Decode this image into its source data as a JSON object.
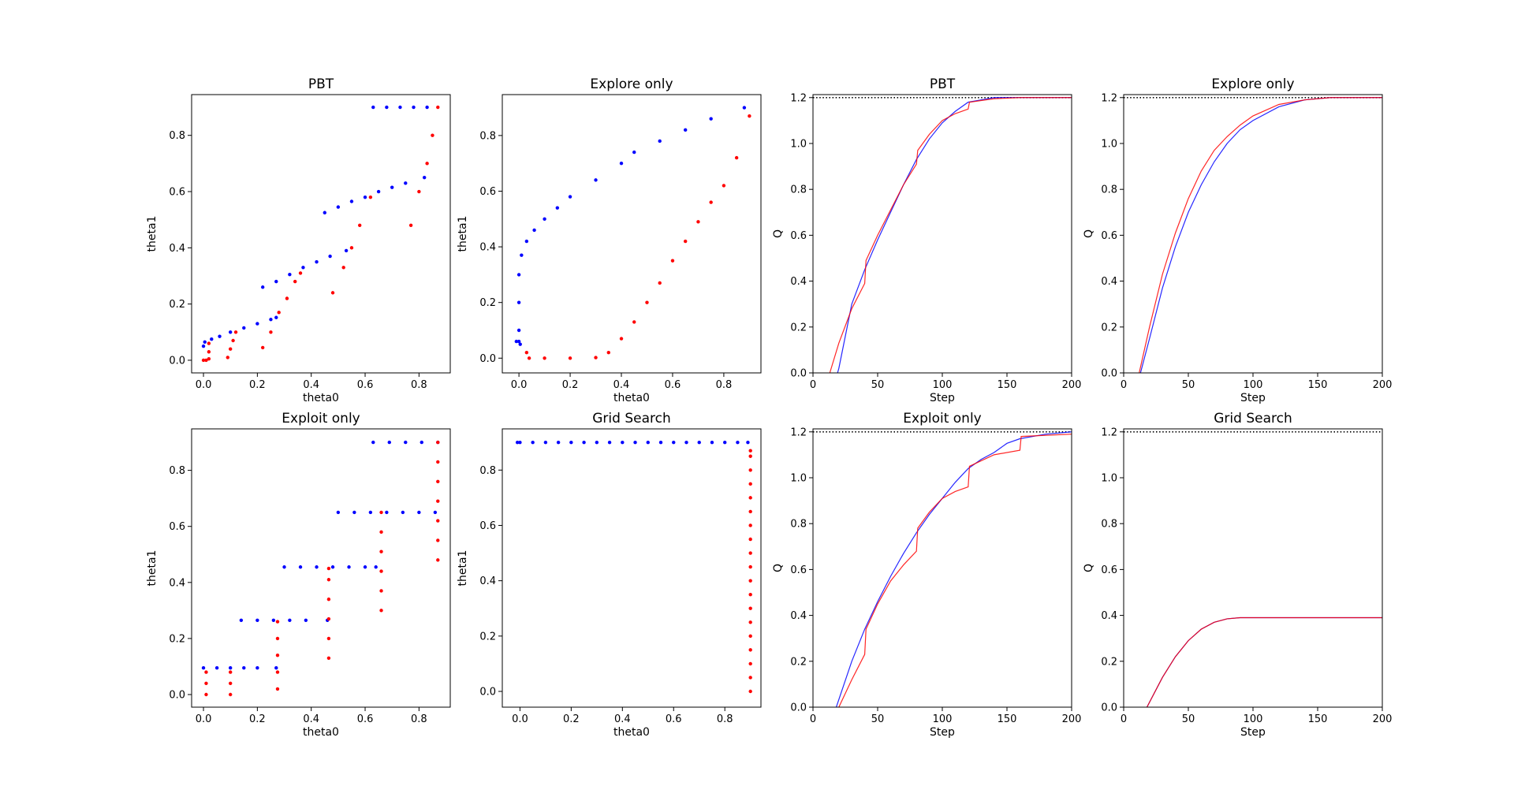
{
  "chart_data": [
    {
      "type": "scatter",
      "title": "PBT",
      "xlabel": "theta0",
      "ylabel": "theta1",
      "xlim": [
        -0.044,
        0.916
      ],
      "ylim": [
        -0.045,
        0.945
      ],
      "xticks": [
        {
          "value": 0,
          "label": "0.0"
        },
        0.2,
        0.4,
        0.6,
        0.8
      ],
      "yticks": [
        {
          "value": 0,
          "label": "0.0"
        },
        0.2,
        0.4,
        0.6,
        0.8
      ],
      "series": [
        {
          "color": "#0000ff",
          "x": [
            0,
            0.005,
            0.03,
            0.06,
            0.1,
            0.15,
            0.2,
            0.25,
            0.27,
            0.22,
            0.27,
            0.32,
            0.37,
            0.42,
            0.47,
            0.53,
            0.45,
            0.5,
            0.55,
            0.6,
            0.65,
            0.7,
            0.75,
            0.82,
            0.63,
            0.68,
            0.73,
            0.78,
            0.83
          ],
          "values": [
            0.05,
            0.065,
            0.075,
            0.085,
            0.1,
            0.115,
            0.13,
            0.145,
            0.152,
            0.26,
            0.28,
            0.305,
            0.33,
            0.35,
            0.37,
            0.39,
            0.525,
            0.545,
            0.565,
            0.58,
            0.6,
            0.615,
            0.63,
            0.65,
            0.9,
            0.9,
            0.9,
            0.9,
            0.9
          ]
        },
        {
          "color": "#ff0000",
          "x": [
            0,
            0.01,
            0.02,
            0.02,
            0.02,
            0.09,
            0.1,
            0.11,
            0.12,
            0.22,
            0.25,
            0.28,
            0.31,
            0.34,
            0.36,
            0.48,
            0.52,
            0.55,
            0.58,
            0.62,
            0.77,
            0.8,
            0.83,
            0.85,
            0.87
          ],
          "values": [
            0,
            0,
            0.005,
            0.03,
            0.06,
            0.01,
            0.04,
            0.07,
            0.1,
            0.045,
            0.1,
            0.17,
            0.22,
            0.28,
            0.31,
            0.24,
            0.33,
            0.4,
            0.48,
            0.58,
            0.48,
            0.6,
            0.7,
            0.8,
            0.9
          ]
        }
      ]
    },
    {
      "type": "scatter",
      "title": "Explore only",
      "xlabel": "theta0",
      "ylabel": "theta1",
      "xlim": [
        -0.065,
        0.945
      ],
      "ylim": [
        -0.053,
        0.947
      ],
      "xticks": [
        {
          "value": 0,
          "label": "0.0"
        },
        0.2,
        0.4,
        0.6,
        0.8
      ],
      "yticks": [
        {
          "value": 0,
          "label": "0.0"
        },
        0.2,
        0.4,
        0.6,
        0.8
      ],
      "series": [
        {
          "color": "#0000ff",
          "x": [
            -0.01,
            0,
            0.005,
            0,
            0,
            0,
            0.01,
            0.03,
            0.06,
            0.1,
            0.15,
            0.2,
            0.3,
            0.4,
            0.45,
            0.55,
            0.65,
            0.75,
            0.88
          ],
          "values": [
            0.06,
            0.06,
            0.05,
            0.1,
            0.2,
            0.3,
            0.37,
            0.42,
            0.46,
            0.5,
            0.54,
            0.58,
            0.64,
            0.7,
            0.74,
            0.78,
            0.82,
            0.86,
            0.9
          ]
        },
        {
          "color": "#ff0000",
          "x": [
            0.03,
            0.04,
            0.1,
            0.2,
            0.3,
            0.35,
            0.4,
            0.45,
            0.5,
            0.55,
            0.6,
            0.65,
            0.7,
            0.75,
            0.8,
            0.85,
            0.9
          ],
          "values": [
            0.02,
            0,
            0,
            0,
            0.002,
            0.02,
            0.07,
            0.13,
            0.2,
            0.27,
            0.35,
            0.42,
            0.49,
            0.56,
            0.62,
            0.72,
            0.87
          ]
        }
      ]
    },
    {
      "type": "line",
      "title": "PBT",
      "xlabel": "Step",
      "ylabel": "Q",
      "xlim": [
        0,
        200
      ],
      "ylim": [
        0,
        1.213
      ],
      "hline": 1.2,
      "xticks": [
        0,
        50,
        100,
        150,
        200
      ],
      "yticks": [
        {
          "value": 0,
          "label": "0.0"
        },
        0.2,
        0.4,
        0.6,
        0.8,
        {
          "value": 1,
          "label": "1.0"
        },
        1.2
      ],
      "series": [
        {
          "color": "#0000ff",
          "x": [
            19,
            20,
            30,
            40,
            50,
            60,
            70,
            80,
            90,
            100,
            110,
            120,
            130,
            140,
            200
          ],
          "values": [
            0,
            0.02,
            0.3,
            0.45,
            0.58,
            0.7,
            0.82,
            0.93,
            1.02,
            1.09,
            1.14,
            1.18,
            1.19,
            1.2,
            1.2
          ]
        },
        {
          "color": "#ff0000",
          "x": [
            13,
            20,
            30,
            40,
            41,
            50,
            60,
            70,
            80,
            81,
            90,
            100,
            110,
            120,
            121,
            140,
            160,
            200
          ],
          "values": [
            0,
            0.13,
            0.28,
            0.39,
            0.49,
            0.6,
            0.71,
            0.82,
            0.91,
            0.97,
            1.04,
            1.1,
            1.13,
            1.15,
            1.18,
            1.195,
            1.2,
            1.2
          ]
        }
      ]
    },
    {
      "type": "line",
      "title": "Explore only",
      "xlabel": "Step",
      "ylabel": "Q",
      "xlim": [
        0,
        200
      ],
      "ylim": [
        0,
        1.213
      ],
      "hline": 1.2,
      "xticks": [
        0,
        50,
        100,
        150,
        200
      ],
      "yticks": [
        {
          "value": 0,
          "label": "0.0"
        },
        0.2,
        0.4,
        0.6,
        0.8,
        {
          "value": 1,
          "label": "1.0"
        },
        1.2
      ],
      "series": [
        {
          "color": "#0000ff",
          "x": [
            13,
            20,
            30,
            40,
            50,
            60,
            70,
            80,
            90,
            100,
            120,
            140,
            160,
            200
          ],
          "values": [
            0,
            0.15,
            0.37,
            0.55,
            0.7,
            0.82,
            0.92,
            1,
            1.06,
            1.1,
            1.16,
            1.19,
            1.2,
            1.2
          ]
        },
        {
          "color": "#ff0000",
          "x": [
            12,
            20,
            30,
            40,
            50,
            60,
            70,
            80,
            90,
            100,
            120,
            140,
            160,
            200
          ],
          "values": [
            0,
            0.2,
            0.43,
            0.61,
            0.76,
            0.88,
            0.97,
            1.03,
            1.08,
            1.12,
            1.17,
            1.19,
            1.2,
            1.2
          ]
        }
      ]
    },
    {
      "type": "scatter",
      "title": "Exploit only",
      "xlabel": "theta0",
      "ylabel": "theta1",
      "xlim": [
        -0.044,
        0.916
      ],
      "ylim": [
        -0.045,
        0.948
      ],
      "xticks": [
        {
          "value": 0,
          "label": "0.0"
        },
        0.2,
        0.4,
        0.6,
        0.8
      ],
      "yticks": [
        {
          "value": 0,
          "label": "0.0"
        },
        0.2,
        0.4,
        0.6,
        0.8
      ],
      "series": [
        {
          "color": "#0000ff",
          "x": [
            0,
            0.05,
            0.1,
            0.15,
            0.2,
            0.27,
            0.14,
            0.2,
            0.26,
            0.32,
            0.38,
            0.46,
            0.3,
            0.36,
            0.42,
            0.48,
            0.54,
            0.6,
            0.64,
            0.5,
            0.56,
            0.62,
            0.68,
            0.74,
            0.8,
            0.86,
            0.63,
            0.69,
            0.75,
            0.81,
            0.87
          ],
          "values": [
            0.095,
            0.095,
            0.095,
            0.095,
            0.095,
            0.095,
            0.265,
            0.265,
            0.265,
            0.265,
            0.265,
            0.265,
            0.455,
            0.455,
            0.455,
            0.455,
            0.455,
            0.455,
            0.455,
            0.65,
            0.65,
            0.65,
            0.65,
            0.65,
            0.65,
            0.65,
            0.9,
            0.9,
            0.9,
            0.9,
            0.9
          ]
        },
        {
          "color": "#ff0000",
          "x": [
            0.01,
            0.01,
            0.01,
            0.1,
            0.1,
            0.1,
            0.275,
            0.275,
            0.275,
            0.275,
            0.275,
            0.465,
            0.465,
            0.465,
            0.465,
            0.465,
            0.465,
            0.66,
            0.66,
            0.66,
            0.66,
            0.66,
            0.66,
            0.87,
            0.87,
            0.87,
            0.87,
            0.87,
            0.87,
            0.87
          ],
          "values": [
            0,
            0.04,
            0.08,
            0,
            0.04,
            0.08,
            0.02,
            0.08,
            0.14,
            0.2,
            0.26,
            0.13,
            0.2,
            0.27,
            0.34,
            0.41,
            0.45,
            0.3,
            0.37,
            0.44,
            0.51,
            0.58,
            0.65,
            0.48,
            0.55,
            0.62,
            0.69,
            0.76,
            0.83,
            0.9
          ]
        }
      ]
    },
    {
      "type": "scatter",
      "title": "Grid Search",
      "xlabel": "theta0",
      "ylabel": "theta1",
      "xlim": [
        -0.069,
        0.941
      ],
      "ylim": [
        -0.057,
        0.949
      ],
      "xticks": [
        {
          "value": 0,
          "label": "0.0"
        },
        0.2,
        0.4,
        0.6,
        0.8
      ],
      "yticks": [
        {
          "value": 0,
          "label": "0.0"
        },
        0.2,
        0.4,
        0.6,
        0.8
      ],
      "series": [
        {
          "color": "#0000ff",
          "x": [
            -0.01,
            0,
            0.05,
            0.1,
            0.15,
            0.2,
            0.25,
            0.3,
            0.35,
            0.4,
            0.45,
            0.5,
            0.55,
            0.6,
            0.65,
            0.7,
            0.75,
            0.8,
            0.85,
            0.89
          ],
          "values": [
            0.9,
            0.9,
            0.9,
            0.9,
            0.9,
            0.9,
            0.9,
            0.9,
            0.9,
            0.9,
            0.9,
            0.9,
            0.9,
            0.9,
            0.9,
            0.9,
            0.9,
            0.9,
            0.9,
            0.9
          ]
        },
        {
          "color": "#ff0000",
          "x": [
            0.9,
            0.9,
            0.9,
            0.9,
            0.9,
            0.9,
            0.9,
            0.9,
            0.9,
            0.9,
            0.9,
            0.9,
            0.9,
            0.9,
            0.9,
            0.9,
            0.9,
            0.9,
            0.9
          ],
          "values": [
            0,
            0.05,
            0.1,
            0.15,
            0.2,
            0.25,
            0.3,
            0.35,
            0.4,
            0.45,
            0.5,
            0.55,
            0.6,
            0.65,
            0.7,
            0.75,
            0.8,
            0.85,
            0.87
          ]
        }
      ]
    },
    {
      "type": "line",
      "title": "Exploit only",
      "xlabel": "Step",
      "ylabel": "Q",
      "xlim": [
        0,
        200
      ],
      "ylim": [
        0,
        1.213
      ],
      "hline": 1.2,
      "xticks": [
        0,
        50,
        100,
        150,
        200
      ],
      "yticks": [
        {
          "value": 0,
          "label": "0.0"
        },
        0.2,
        0.4,
        0.6,
        0.8,
        {
          "value": 1,
          "label": "1.0"
        },
        1.2
      ],
      "series": [
        {
          "color": "#0000ff",
          "x": [
            18,
            30,
            40,
            50,
            60,
            70,
            80,
            90,
            100,
            110,
            120,
            130,
            140,
            150,
            160,
            180,
            200
          ],
          "values": [
            0,
            0.2,
            0.34,
            0.46,
            0.57,
            0.67,
            0.76,
            0.84,
            0.91,
            0.98,
            1.04,
            1.08,
            1.11,
            1.15,
            1.17,
            1.19,
            1.2
          ]
        },
        {
          "color": "#ff0000",
          "x": [
            20,
            30,
            40,
            41,
            50,
            60,
            70,
            80,
            81,
            90,
            100,
            110,
            120,
            121,
            140,
            160,
            161,
            200
          ],
          "values": [
            0,
            0.12,
            0.23,
            0.34,
            0.45,
            0.55,
            0.62,
            0.68,
            0.78,
            0.85,
            0.91,
            0.94,
            0.96,
            1.05,
            1.1,
            1.12,
            1.18,
            1.19
          ]
        }
      ]
    },
    {
      "type": "line",
      "title": "Grid Search",
      "xlabel": "Step",
      "ylabel": "Q",
      "xlim": [
        0,
        200
      ],
      "ylim": [
        0,
        1.213
      ],
      "hline": 1.2,
      "xticks": [
        0,
        50,
        100,
        150,
        200
      ],
      "yticks": [
        {
          "value": 0,
          "label": "0.0"
        },
        0.2,
        0.4,
        0.6,
        0.8,
        {
          "value": 1,
          "label": "1.0"
        },
        1.2
      ],
      "series": [
        {
          "color": "#0000ff",
          "x": [
            18,
            30,
            40,
            50,
            60,
            70,
            80,
            90,
            100,
            200
          ],
          "values": [
            0,
            0.13,
            0.22,
            0.29,
            0.34,
            0.37,
            0.385,
            0.39,
            0.39,
            0.39
          ]
        },
        {
          "color": "#ff0000",
          "x": [
            18,
            30,
            40,
            50,
            60,
            70,
            80,
            90,
            100,
            200
          ],
          "values": [
            0,
            0.13,
            0.22,
            0.29,
            0.34,
            0.37,
            0.385,
            0.39,
            0.39,
            0.39
          ]
        }
      ]
    }
  ]
}
